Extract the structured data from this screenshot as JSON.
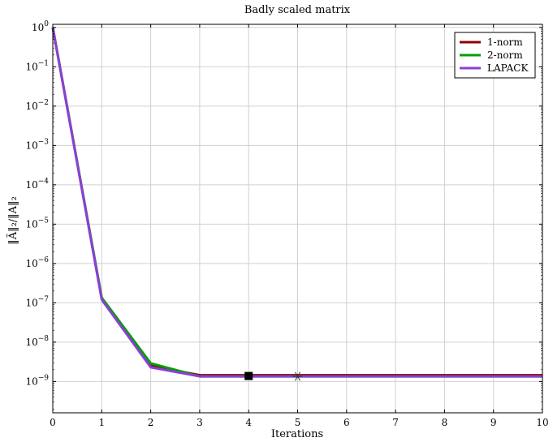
{
  "chart_data": {
    "type": "line",
    "title": "Badly scaled matrix",
    "xlabel": "Iterations",
    "ylabel": "‖Ã‖₂/‖A‖₂",
    "x": [
      0,
      1,
      2,
      3,
      4,
      5,
      6,
      7,
      8,
      9,
      10
    ],
    "xlim": [
      0,
      10
    ],
    "ylim": [
      1.6e-10,
      1.2
    ],
    "yscale": "log",
    "xticks": [
      "0",
      "1",
      "2",
      "3",
      "4",
      "5",
      "6",
      "7",
      "8",
      "9",
      "10"
    ],
    "yticks": [
      {
        "base": "10",
        "exp": "0",
        "value": 1
      },
      {
        "base": "10",
        "exp": "−1",
        "value": 0.1
      },
      {
        "base": "10",
        "exp": "−2",
        "value": 0.01
      },
      {
        "base": "10",
        "exp": "−3",
        "value": 0.001
      },
      {
        "base": "10",
        "exp": "−4",
        "value": 0.0001
      },
      {
        "base": "10",
        "exp": "−5",
        "value": 1e-05
      },
      {
        "base": "10",
        "exp": "−6",
        "value": 1e-06
      },
      {
        "base": "10",
        "exp": "−7",
        "value": 1e-07
      },
      {
        "base": "10",
        "exp": "−8",
        "value": 1e-08
      },
      {
        "base": "10",
        "exp": "−9",
        "value": 1e-09
      }
    ],
    "grid": true,
    "legend_position": "top-right",
    "series": [
      {
        "name": "1-norm",
        "color": "#8b0000",
        "values": [
          1,
          1.3e-07,
          2.5e-09,
          1.45e-09,
          1.45e-09,
          1.45e-09,
          1.45e-09,
          1.45e-09,
          1.45e-09,
          1.45e-09,
          1.45e-09
        ]
      },
      {
        "name": "2-norm",
        "color": "#00a000",
        "values": [
          1,
          1.35e-07,
          2.9e-09,
          1.35e-09,
          1.35e-09,
          1.35e-09,
          1.35e-09,
          1.35e-09,
          1.35e-09,
          1.35e-09,
          1.35e-09
        ]
      },
      {
        "name": "LAPACK",
        "color": "#8b3fd9",
        "values": [
          1,
          1.2e-07,
          2.3e-09,
          1.35e-09,
          1.35e-09,
          1.35e-09,
          1.35e-09,
          1.35e-09,
          1.35e-09,
          1.35e-09,
          1.35e-09
        ]
      }
    ],
    "markers": [
      {
        "shape": "square",
        "x": 4,
        "y": 1.38e-09,
        "color": "#000000"
      },
      {
        "shape": "asterisk",
        "x": 5,
        "y": 1.35e-09,
        "color": "#333333"
      }
    ]
  }
}
